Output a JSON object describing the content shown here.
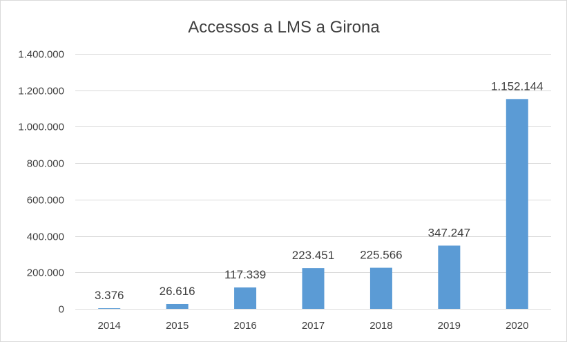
{
  "chart_data": {
    "type": "bar",
    "title": "Accessos a LMS a Girona",
    "xlabel": "",
    "ylabel": "",
    "categories": [
      "2014",
      "2015",
      "2016",
      "2017",
      "2018",
      "2019",
      "2020"
    ],
    "values": [
      3376,
      26616,
      117339,
      223451,
      225566,
      347247,
      1152144
    ],
    "data_labels": [
      "3.376",
      "26.616",
      "117.339",
      "223.451",
      "225.566",
      "347.247",
      "1.152.144"
    ],
    "ylim": [
      0,
      1400000
    ],
    "yticks": [
      0,
      200000,
      400000,
      600000,
      800000,
      1000000,
      1200000,
      1400000
    ],
    "ytick_labels": [
      "0",
      "200.000",
      "400.000",
      "600.000",
      "800.000",
      "1.000.000",
      "1.200.000",
      "1.400.000"
    ],
    "grid": true,
    "legend": "none",
    "bar_color": "#5b9bd5",
    "grid_color": "#d9d9d9",
    "text_color": "#404040"
  }
}
